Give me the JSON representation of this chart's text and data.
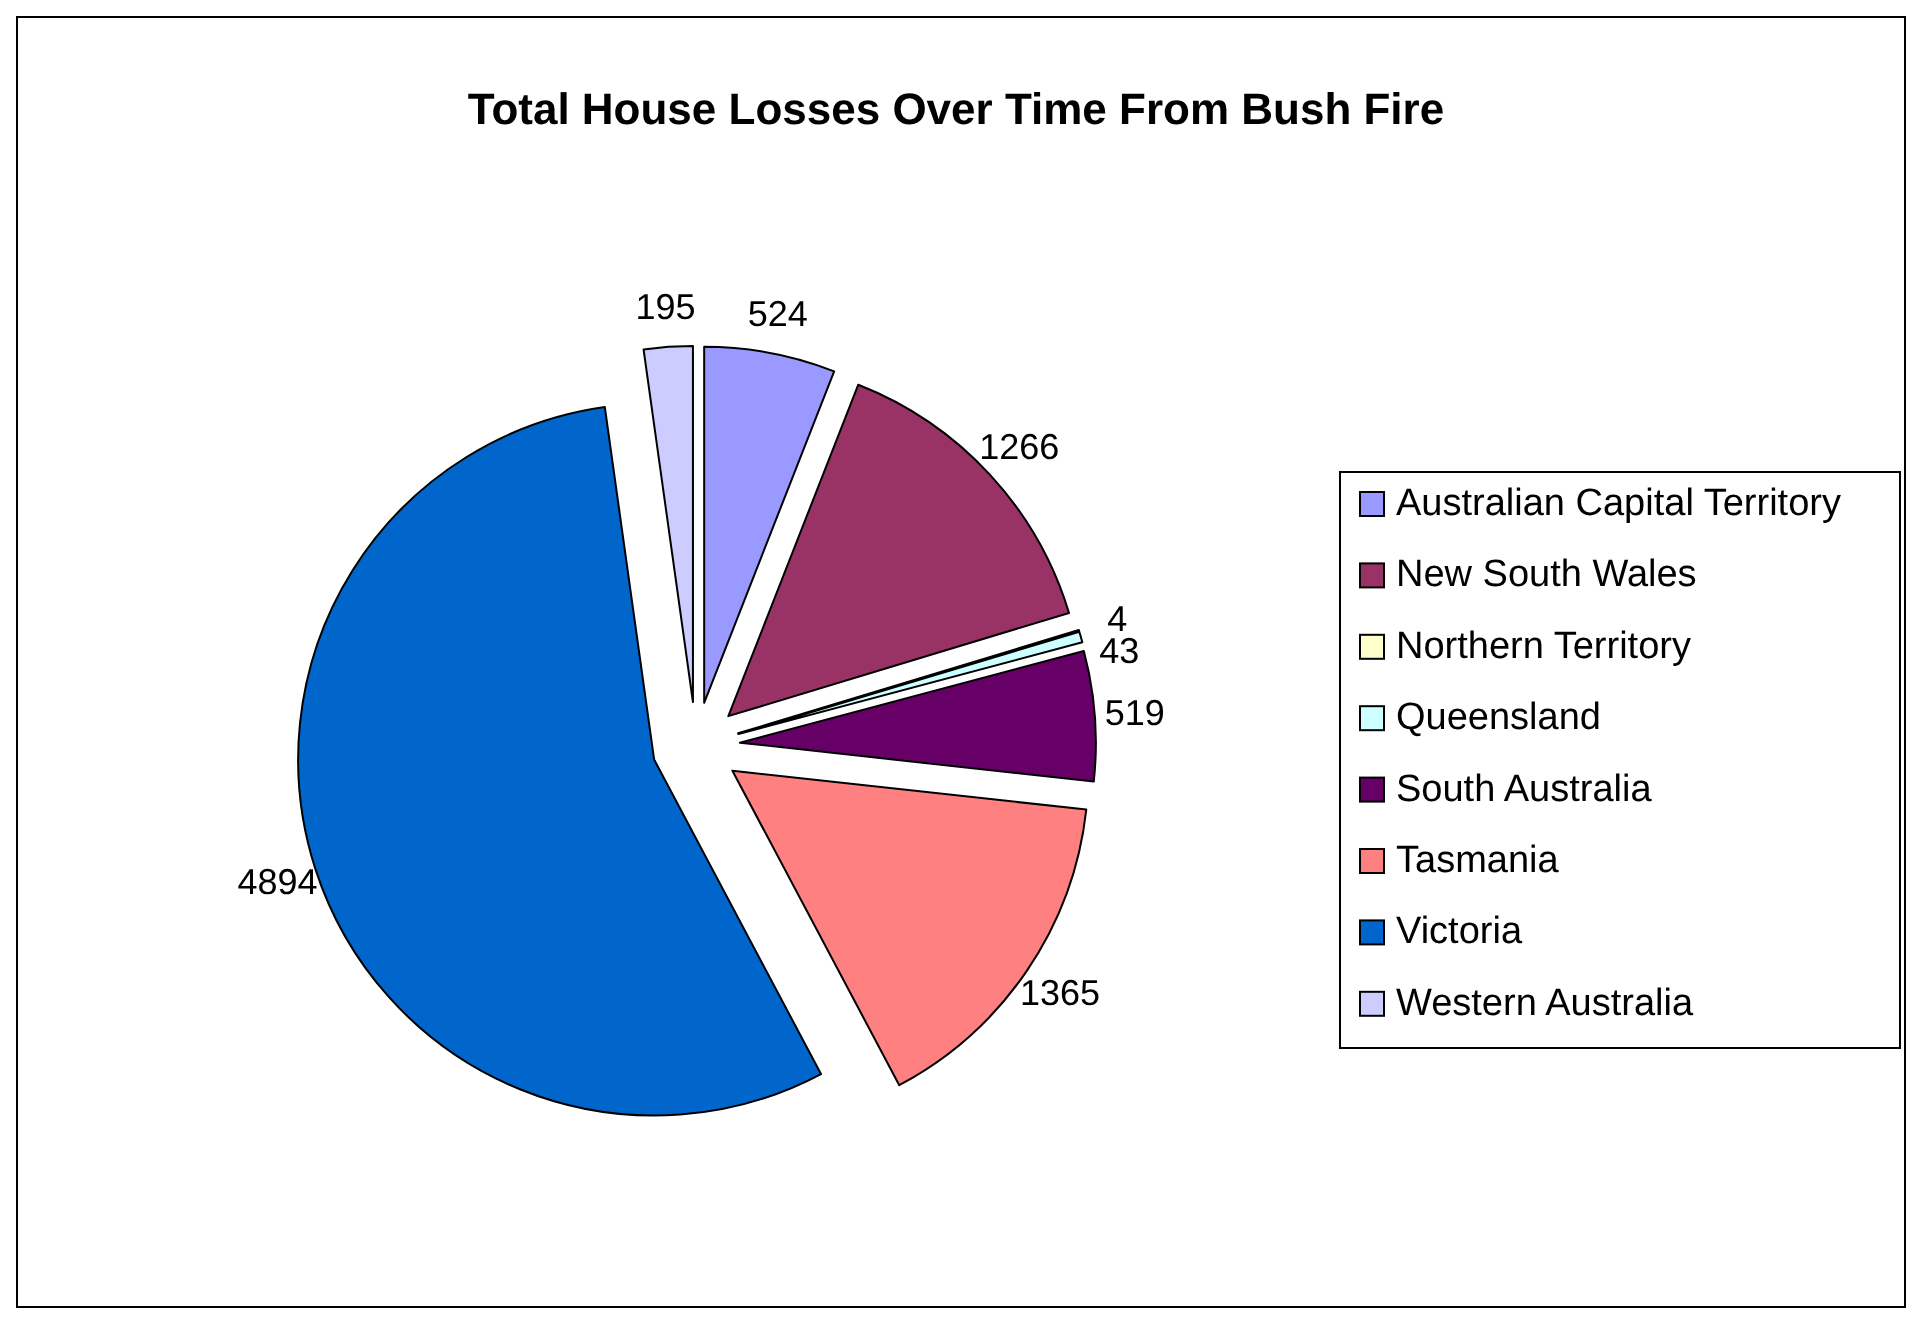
{
  "chart_data": {
    "type": "pie",
    "title": "Total House Losses Over Time From Bush Fire",
    "categories": [
      "Australian Capital Territory",
      "New South Wales",
      "Northern Territory",
      "Queensland",
      "South Australia",
      "Tasmania",
      "Victoria",
      "Western Australia"
    ],
    "values": [
      524,
      1266,
      4,
      43,
      519,
      1365,
      4894,
      195
    ],
    "colors": [
      "#9999ff",
      "#993366",
      "#ffffcc",
      "#ccffff",
      "#660066",
      "#ff8080",
      "#0066cc",
      "#ccccff"
    ],
    "data_labels": true,
    "legend": "right"
  }
}
